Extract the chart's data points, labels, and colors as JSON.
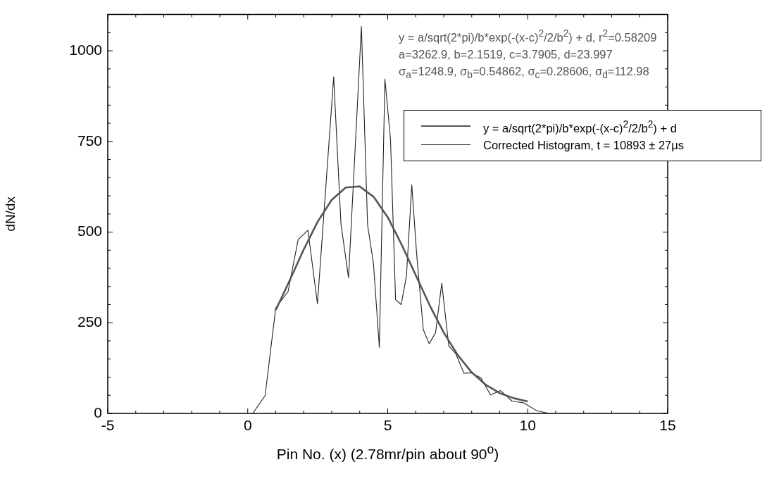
{
  "chart_data": {
    "type": "line",
    "xlabel": "Pin No. (x) (2.78mr/pin about 90$^{o}$)",
    "ylabel": "dN/dx",
    "annotations": [
      "y = a/sqrt(2*pi)/b*exp(-(x-c)$^{2}$/2/b$^{2}$) + d, r$^{2}$=0.58209",
      "a=3262.9, b=2.1519, c=3.7905, d=23.997",
      "σ$_{a}$=1248.9, σ$_{b}$=0.54862, σ$_{c}$=0.28606, σ$_{d}$=112.98"
    ],
    "series": [
      {
        "name": "y = a/sqrt(2*pi)/b*exp(-(x-c)$^{2}$/2/b$^{2}$) + d",
        "color": "#555555",
        "x": [
          1,
          1.5,
          2,
          2.5,
          3,
          3.5,
          4,
          4.5,
          5,
          5.5,
          6,
          6.5,
          7,
          7.5,
          8,
          8.5,
          9,
          9.5,
          10
        ],
        "values": [
          285,
          367,
          452,
          529,
          589,
          623,
          626,
          597,
          541,
          465,
          381,
          298,
          223,
          161,
          113,
          79,
          56,
          42,
          33
        ]
      },
      {
        "name": "Corrected Histogram, t = 10893 ± 27μs",
        "color": "#222222",
        "x": [
          0.18,
          0.62,
          1.0,
          1.44,
          1.8,
          2.15,
          2.49,
          3.07,
          3.33,
          3.6,
          4.06,
          4.28,
          4.49,
          4.7,
          4.9,
          5.1,
          5.28,
          5.48,
          5.67,
          5.86,
          6.03,
          6.27,
          6.48,
          6.71,
          6.93,
          7.18,
          7.43,
          7.72,
          7.97,
          8.33,
          8.67,
          9.03,
          9.44,
          9.86,
          10.31,
          10.75
        ],
        "values": [
          0,
          49,
          291,
          336,
          479,
          505,
          302,
          928,
          522,
          374,
          1067,
          520,
          414,
          182,
          922,
          755,
          314,
          300,
          380,
          630,
          443,
          231,
          192,
          223,
          359,
          186,
          165,
          111,
          112,
          98,
          51,
          63,
          34,
          29,
          8,
          0
        ]
      }
    ],
    "xlim": [
      -5,
      15
    ],
    "ylim": [
      0,
      1100
    ],
    "xticks": [
      -5,
      {
        "value": -4,
        "label": null
      },
      {
        "value": -3,
        "label": null
      },
      {
        "value": -2,
        "label": null
      },
      {
        "value": -1,
        "label": null
      },
      0,
      {
        "value": 1,
        "label": null
      },
      {
        "value": 2,
        "label": null
      },
      {
        "value": 3,
        "label": null
      },
      {
        "value": 4,
        "label": null
      },
      5,
      {
        "value": 6,
        "label": null
      },
      {
        "value": 7,
        "label": null
      },
      {
        "value": 8,
        "label": null
      },
      {
        "value": 9,
        "label": null
      },
      10,
      {
        "value": 11,
        "label": null
      },
      {
        "value": 12,
        "label": null
      },
      {
        "value": 13,
        "label": null
      },
      {
        "value": 14,
        "label": null
      },
      15
    ],
    "yticks": [
      0,
      {
        "value": 50,
        "label": null
      },
      {
        "value": 100,
        "label": null
      },
      {
        "value": 150,
        "label": null
      },
      {
        "value": 200,
        "label": null
      },
      250,
      {
        "value": 300,
        "label": null
      },
      {
        "value": 350,
        "label": null
      },
      {
        "value": 400,
        "label": null
      },
      {
        "value": 450,
        "label": null
      },
      500,
      {
        "value": 550,
        "label": null
      },
      {
        "value": 600,
        "label": null
      },
      {
        "value": 650,
        "label": null
      },
      {
        "value": 700,
        "label": null
      },
      750,
      {
        "value": 800,
        "label": null
      },
      {
        "value": 850,
        "label": null
      },
      {
        "value": 900,
        "label": null
      },
      {
        "value": 950,
        "label": null
      },
      1000,
      {
        "value": 1050,
        "label": null
      },
      {
        "value": 1100,
        "label": null
      }
    ],
    "grid": false,
    "legend": "top right",
    "line_style": "solid",
    "marker": "none"
  }
}
